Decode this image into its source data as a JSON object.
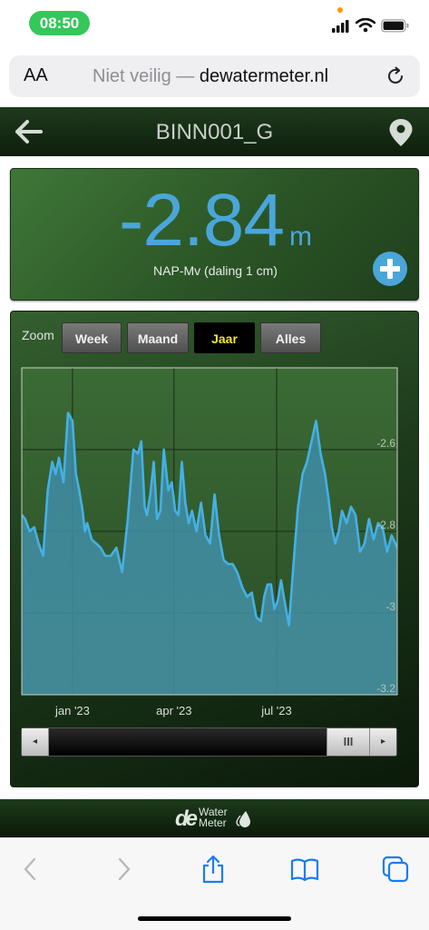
{
  "status_bar": {
    "time": "08:50"
  },
  "browser": {
    "text_size_label": "AA",
    "url_security": "Niet veilig —",
    "url_domain": "dewatermeter.nl"
  },
  "header": {
    "title": "BINN001_G"
  },
  "reading": {
    "value": "-2.84",
    "unit": "m",
    "subtitle": "NAP-Mv (daling 1 cm)"
  },
  "zoom": {
    "label": "Zoom",
    "buttons": [
      "Week",
      "Maand",
      "Jaar",
      "Alles"
    ],
    "active": "Jaar"
  },
  "scrollbar": {
    "thumb_glyph": "III",
    "left_glyph": "◂",
    "right_glyph": "▸"
  },
  "footer": {
    "logo_mark": "de",
    "logo_line1": "Water",
    "logo_line2": "Meter"
  },
  "colors": {
    "accent_blue": "#4aa6d9",
    "active_zoom_text": "#f0e62f",
    "header_green": "#1f3a1d",
    "status_pill": "#34c759"
  },
  "chart_data": {
    "type": "area",
    "x_unit": "date",
    "x_range": [
      "2022-11-17",
      "2023-10-16"
    ],
    "y_range": [
      -3.2,
      -2.4
    ],
    "y_ticks": [
      -2.6,
      -2.8,
      -3,
      -3.2
    ],
    "y_tick_labels": [
      "-2.6",
      "-2.8",
      "-3",
      "-3.2"
    ],
    "x_tick_labels": [
      "jan '23",
      "apr '23",
      "jul '23"
    ],
    "x_tick_dates": [
      "2023-01-01",
      "2023-04-01",
      "2023-07-01"
    ],
    "grid": true,
    "series": [
      {
        "x": [
          "2022-11-17",
          "2022-11-20",
          "2022-11-24",
          "2022-11-28",
          "2022-12-02",
          "2022-12-06",
          "2022-12-10",
          "2022-12-14",
          "2022-12-17",
          "2022-12-20",
          "2022-12-24",
          "2022-12-28",
          "2023-01-01",
          "2023-01-04",
          "2023-01-07",
          "2023-01-10",
          "2023-01-12",
          "2023-01-14",
          "2023-01-18",
          "2023-01-22",
          "2023-01-26",
          "2023-01-30",
          "2023-02-04",
          "2023-02-09",
          "2023-02-14",
          "2023-02-19",
          "2023-02-24",
          "2023-02-28",
          "2023-03-03",
          "2023-03-06",
          "2023-03-08",
          "2023-03-11",
          "2023-03-14",
          "2023-03-17",
          "2023-03-20",
          "2023-03-23",
          "2023-03-27",
          "2023-03-30",
          "2023-04-02",
          "2023-04-05",
          "2023-04-08",
          "2023-04-11",
          "2023-04-14",
          "2023-04-17",
          "2023-04-21",
          "2023-04-25",
          "2023-04-29",
          "2023-05-03",
          "2023-05-07",
          "2023-05-11",
          "2023-05-15",
          "2023-05-19",
          "2023-05-23",
          "2023-05-27",
          "2023-06-01",
          "2023-06-05",
          "2023-06-09",
          "2023-06-13",
          "2023-06-17",
          "2023-06-20",
          "2023-06-23",
          "2023-06-26",
          "2023-06-29",
          "2023-07-02",
          "2023-07-05",
          "2023-07-08",
          "2023-07-12",
          "2023-07-16",
          "2023-07-20",
          "2023-07-24",
          "2023-07-28",
          "2023-08-01",
          "2023-08-05",
          "2023-08-09",
          "2023-08-13",
          "2023-08-16",
          "2023-08-19",
          "2023-08-22",
          "2023-08-25",
          "2023-08-28",
          "2023-09-01",
          "2023-09-05",
          "2023-09-09",
          "2023-09-13",
          "2023-09-17",
          "2023-09-21",
          "2023-09-25",
          "2023-09-29",
          "2023-10-03",
          "2023-10-07",
          "2023-10-11",
          "2023-10-16"
        ],
        "y": [
          -2.76,
          -2.77,
          -2.8,
          -2.79,
          -2.83,
          -2.86,
          -2.7,
          -2.63,
          -2.66,
          -2.62,
          -2.68,
          -2.51,
          -2.53,
          -2.66,
          -2.7,
          -2.75,
          -2.8,
          -2.78,
          -2.82,
          -2.83,
          -2.84,
          -2.86,
          -2.86,
          -2.84,
          -2.9,
          -2.77,
          -2.6,
          -2.61,
          -2.58,
          -2.74,
          -2.76,
          -2.71,
          -2.63,
          -2.77,
          -2.75,
          -2.6,
          -2.7,
          -2.68,
          -2.75,
          -2.76,
          -2.63,
          -2.73,
          -2.78,
          -2.75,
          -2.8,
          -2.73,
          -2.81,
          -2.83,
          -2.71,
          -2.81,
          -2.87,
          -2.88,
          -2.88,
          -2.9,
          -2.94,
          -2.96,
          -2.95,
          -3.01,
          -3.02,
          -2.96,
          -2.93,
          -2.93,
          -2.99,
          -2.97,
          -2.92,
          -2.97,
          -3.03,
          -2.88,
          -2.74,
          -2.66,
          -2.63,
          -2.58,
          -2.53,
          -2.61,
          -2.66,
          -2.72,
          -2.79,
          -2.83,
          -2.8,
          -2.75,
          -2.78,
          -2.74,
          -2.76,
          -2.85,
          -2.83,
          -2.77,
          -2.82,
          -2.78,
          -2.79,
          -2.85,
          -2.81,
          -2.84
        ]
      }
    ]
  }
}
